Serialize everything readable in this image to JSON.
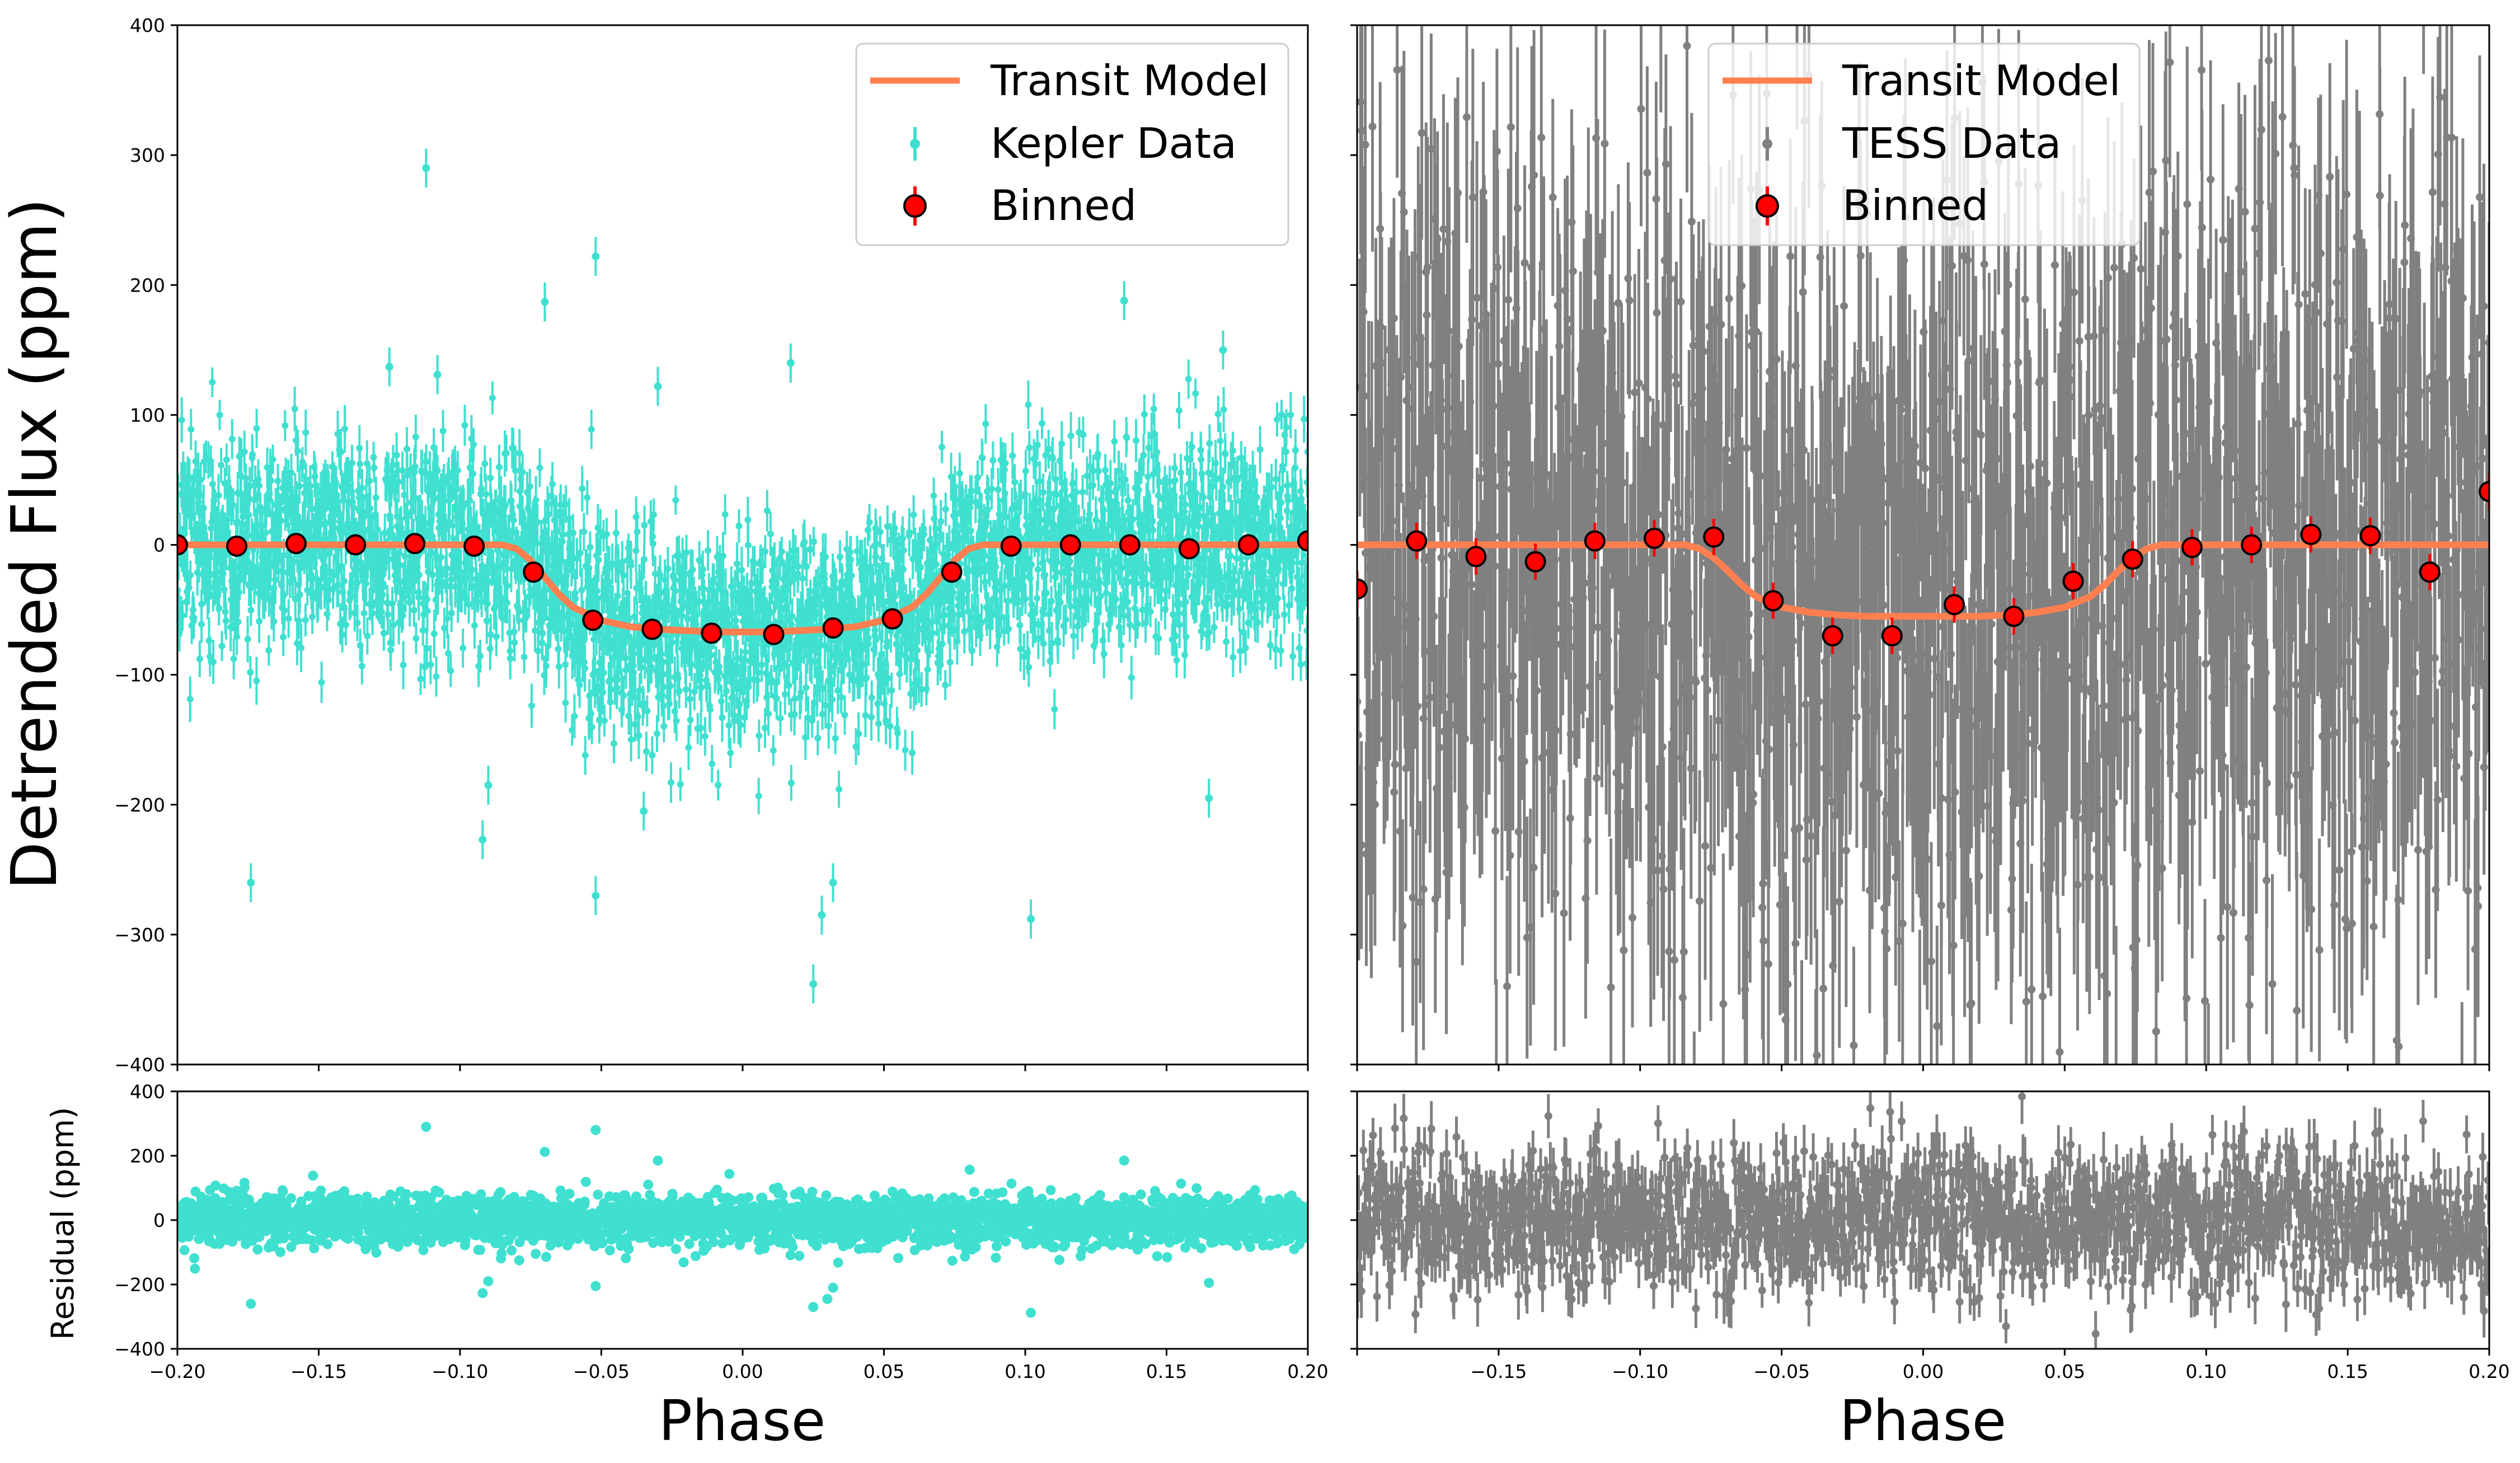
{
  "figure": {
    "ylabel_top": "Detrended Flux (ppm)",
    "ylabel_bottom": "Residual (ppm)",
    "xlabel": "Phase"
  },
  "colors": {
    "kepler": "#40E0D0",
    "tess": "#808080",
    "model": "#FF7F50",
    "binned_fill": "#FF0000",
    "binned_edge": "#000000"
  },
  "chart_data": [
    {
      "id": "kepler-flux",
      "type": "scatter",
      "panel": "top-left",
      "ylabel": "Detrended Flux (ppm)",
      "xlabel": "",
      "xlim": [
        -0.2,
        0.2
      ],
      "ylim": [
        -400,
        400
      ],
      "xticks": [
        -0.2,
        -0.15,
        -0.1,
        -0.05,
        0.0,
        0.05,
        0.1,
        0.15,
        0.2
      ],
      "yticks": [
        -400,
        -300,
        -200,
        -100,
        0,
        100,
        200,
        300,
        400
      ],
      "ytick_labels": [
        "−400",
        "−300",
        "−200",
        "−100",
        "0",
        "100",
        "200",
        "300",
        "400"
      ],
      "legend": {
        "position": "top-right",
        "entries": [
          "Transit Model",
          "Kepler Data",
          "Binned"
        ]
      },
      "raw_data": {
        "name": "Kepler Data",
        "n_points": 3000,
        "noise_ppm": 40,
        "errorbar_ppm": 15,
        "outliers": [
          [
            -0.112,
            290
          ],
          [
            -0.052,
            222
          ],
          [
            -0.07,
            187
          ],
          [
            -0.03,
            122
          ],
          [
            0.135,
            188
          ],
          [
            0.017,
            140
          ],
          [
            -0.174,
            -260
          ],
          [
            -0.052,
            -270
          ],
          [
            0.025,
            -338
          ],
          [
            0.102,
            -288
          ],
          [
            -0.092,
            -227
          ],
          [
            0.032,
            -260
          ],
          [
            0.165,
            -195
          ],
          [
            -0.09,
            -185
          ],
          [
            0.028,
            -285
          ],
          [
            -0.035,
            -205
          ],
          [
            0.17,
            150
          ],
          [
            -0.125,
            137
          ],
          [
            -0.108,
            131
          ]
        ]
      },
      "model": {
        "name": "Transit Model",
        "x": [
          -0.2,
          -0.085,
          -0.08,
          -0.075,
          -0.07,
          -0.065,
          -0.06,
          -0.05,
          -0.04,
          -0.03,
          -0.02,
          -0.01,
          0.0,
          0.01,
          0.02,
          0.03,
          0.04,
          0.05,
          0.06,
          0.065,
          0.07,
          0.075,
          0.08,
          0.085,
          0.2
        ],
        "y": [
          0,
          0,
          -3,
          -12,
          -25,
          -38,
          -48,
          -58,
          -63,
          -65,
          -66,
          -67,
          -67,
          -67,
          -66,
          -65,
          -63,
          -58,
          -48,
          -38,
          -25,
          -12,
          -3,
          0,
          0
        ]
      },
      "binned": {
        "name": "Binned",
        "x": [
          -0.2,
          -0.179,
          -0.158,
          -0.137,
          -0.116,
          -0.095,
          -0.074,
          -0.053,
          -0.032,
          -0.011,
          0.011,
          0.032,
          0.053,
          0.074,
          0.095,
          0.116,
          0.137,
          0.158,
          0.179,
          0.2
        ],
        "y": [
          0,
          -1,
          1,
          0,
          1,
          -1,
          -21,
          -58,
          -65,
          -68,
          -69,
          -64,
          -57,
          -21,
          -1,
          0,
          0,
          -3,
          0,
          3
        ],
        "err": [
          4,
          4,
          4,
          4,
          4,
          4,
          4,
          4,
          4,
          4,
          4,
          4,
          4,
          4,
          4,
          4,
          4,
          4,
          4,
          4
        ]
      }
    },
    {
      "id": "tess-flux",
      "type": "scatter",
      "panel": "top-right",
      "xlabel": "",
      "xlim": [
        -0.2,
        0.2
      ],
      "ylim": [
        -400,
        400
      ],
      "xticks": [
        -0.2,
        -0.15,
        -0.1,
        -0.05,
        0.0,
        0.05,
        0.1,
        0.15,
        0.2
      ],
      "yticks": [
        -400,
        -300,
        -200,
        -100,
        0,
        100,
        200,
        300,
        400
      ],
      "legend": {
        "position": "top-center",
        "entries": [
          "Transit Model",
          "TESS Data",
          "Binned"
        ]
      },
      "raw_data": {
        "name": "TESS Data",
        "n_points": 1500,
        "noise_ppm": 160,
        "errorbar_ppm": 100
      },
      "model": {
        "name": "Transit Model",
        "x": [
          -0.2,
          -0.084,
          -0.079,
          -0.074,
          -0.069,
          -0.064,
          -0.059,
          -0.05,
          -0.04,
          -0.03,
          -0.02,
          -0.01,
          0.0,
          0.01,
          0.02,
          0.03,
          0.04,
          0.05,
          0.059,
          0.064,
          0.069,
          0.074,
          0.079,
          0.084,
          0.2
        ],
        "y": [
          0,
          0,
          -3,
          -10,
          -20,
          -31,
          -40,
          -48,
          -52,
          -54,
          -55,
          -55,
          -55,
          -55,
          -55,
          -54,
          -52,
          -48,
          -40,
          -31,
          -20,
          -10,
          -3,
          0,
          0
        ]
      },
      "binned": {
        "name": "Binned",
        "x": [
          -0.2,
          -0.179,
          -0.158,
          -0.137,
          -0.116,
          -0.095,
          -0.074,
          -0.053,
          -0.032,
          -0.011,
          0.011,
          0.032,
          0.053,
          0.074,
          0.095,
          0.116,
          0.137,
          0.158,
          0.179,
          0.2
        ],
        "y": [
          -34,
          3,
          -9,
          -13,
          3,
          5,
          6,
          -43,
          -70,
          -70,
          -46,
          -55,
          -28,
          -11,
          -2,
          0,
          8,
          7,
          -21,
          41
        ],
        "err": [
          14,
          14,
          14,
          14,
          14,
          14,
          14,
          14,
          14,
          14,
          14,
          14,
          14,
          14,
          14,
          14,
          14,
          14,
          14,
          14
        ]
      }
    },
    {
      "id": "kepler-residual",
      "type": "scatter",
      "panel": "bottom-left",
      "ylabel": "Residual (ppm)",
      "xlabel": "Phase",
      "xlim": [
        -0.2,
        0.2
      ],
      "ylim": [
        -400,
        400
      ],
      "xticks": [
        -0.2,
        -0.15,
        -0.1,
        -0.05,
        0.0,
        0.05,
        0.1,
        0.15,
        0.2
      ],
      "xtick_labels": [
        "−0.20",
        "−0.15",
        "−0.10",
        "−0.05",
        "0.00",
        "0.05",
        "0.10",
        "0.15",
        "0.20"
      ],
      "yticks": [
        -400,
        -200,
        0,
        200,
        400
      ],
      "ytick_labels": [
        "−400",
        "−200",
        "0",
        "200",
        "400"
      ],
      "raw_data": {
        "n_points": 3000,
        "noise_ppm": 40,
        "outliers": [
          [
            -0.112,
            290
          ],
          [
            -0.052,
            280
          ],
          [
            -0.07,
            212
          ],
          [
            -0.03,
            185
          ],
          [
            0.135,
            185
          ],
          [
            -0.174,
            -260
          ],
          [
            -0.052,
            -205
          ],
          [
            0.025,
            -270
          ],
          [
            0.102,
            -288
          ],
          [
            -0.092,
            -227
          ],
          [
            0.032,
            -210
          ],
          [
            0.165,
            -195
          ],
          [
            0.03,
            -245
          ],
          [
            -0.09,
            -190
          ]
        ]
      }
    },
    {
      "id": "tess-residual",
      "type": "scatter",
      "panel": "bottom-right",
      "xlabel": "Phase",
      "xlim": [
        -0.2,
        0.2
      ],
      "ylim": [
        -400,
        400
      ],
      "xticks": [
        -0.2,
        -0.15,
        -0.1,
        -0.05,
        0.0,
        0.05,
        0.1,
        0.15,
        0.2
      ],
      "xtick_labels": [
        "",
        "−0.15",
        "−0.10",
        "−0.05",
        "0.00",
        "0.05",
        "0.10",
        "0.15",
        "0.20"
      ],
      "yticks": [
        -400,
        -200,
        0,
        200,
        400
      ],
      "raw_data": {
        "n_points": 1500,
        "noise_ppm": 110,
        "errorbar_ppm": 70
      }
    }
  ]
}
